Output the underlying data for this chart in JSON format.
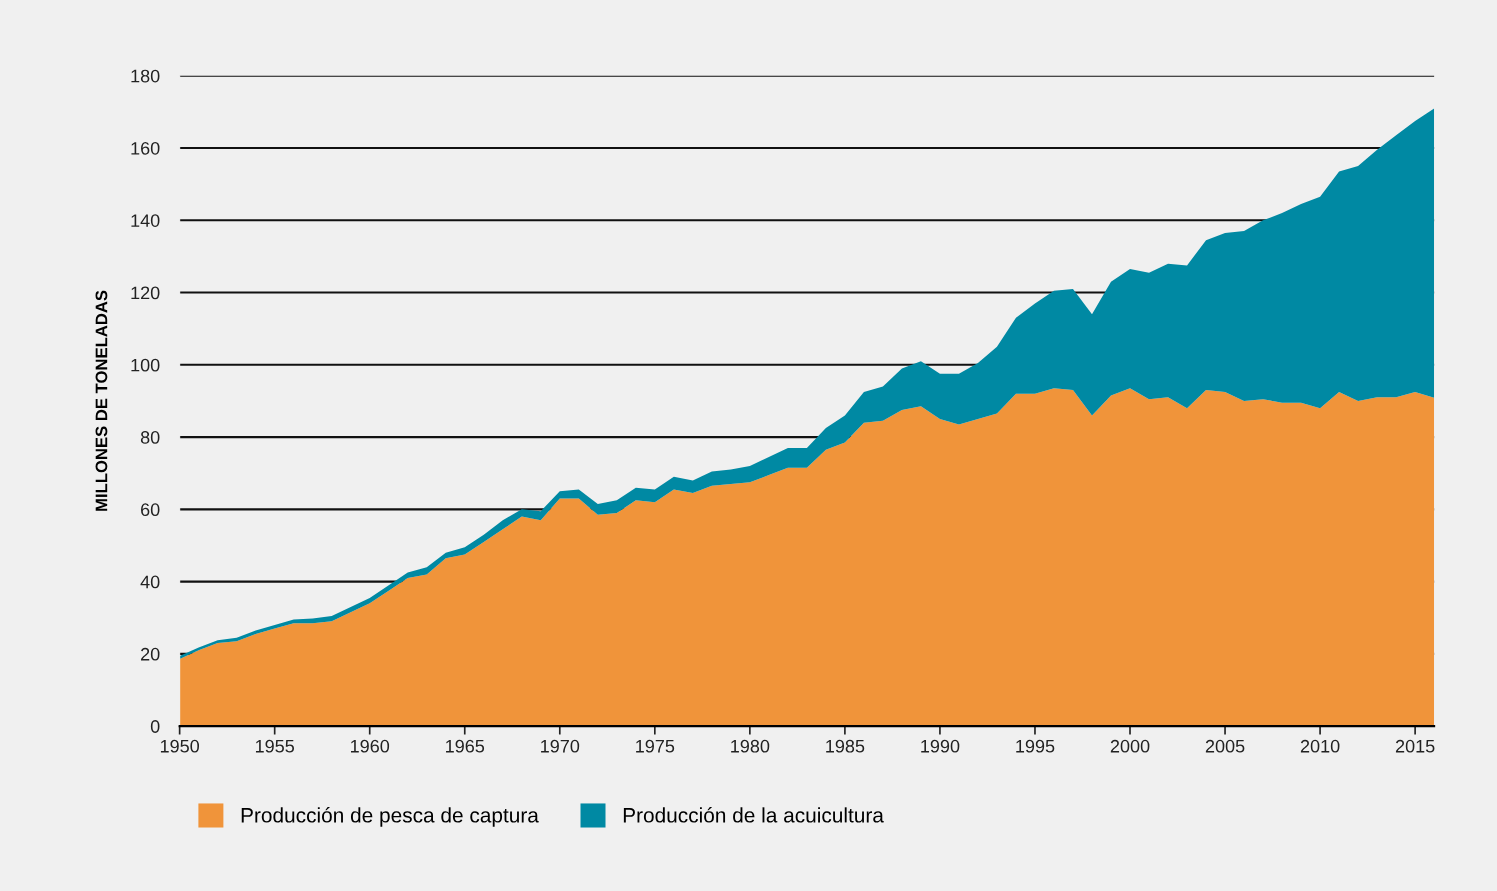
{
  "chart_data": {
    "type": "area",
    "stacked": true,
    "ylabel": "MILLONES DE TONELADAS",
    "x": [
      1950,
      1951,
      1952,
      1953,
      1954,
      1955,
      1956,
      1957,
      1958,
      1959,
      1960,
      1961,
      1962,
      1963,
      1964,
      1965,
      1966,
      1967,
      1968,
      1969,
      1970,
      1971,
      1972,
      1973,
      1974,
      1975,
      1976,
      1977,
      1978,
      1979,
      1980,
      1981,
      1982,
      1983,
      1984,
      1985,
      1986,
      1987,
      1988,
      1989,
      1990,
      1991,
      1992,
      1993,
      1994,
      1995,
      1996,
      1997,
      1998,
      1999,
      2000,
      2001,
      2002,
      2003,
      2004,
      2005,
      2006,
      2007,
      2008,
      2009,
      2010,
      2011,
      2012,
      2013,
      2014,
      2015,
      2016
    ],
    "series": [
      {
        "name": "Producción de pesca de captura",
        "color": "#f0943a",
        "values": [
          18.6,
          21.0,
          23.0,
          23.5,
          25.5,
          27.0,
          28.5,
          28.5,
          29.0,
          31.5,
          34.0,
          37.5,
          41.0,
          42.0,
          46.5,
          47.5,
          51.0,
          54.5,
          58.0,
          57.0,
          63.0,
          63.0,
          58.5,
          59.0,
          62.5,
          62.0,
          65.5,
          64.5,
          66.5,
          67.0,
          67.5,
          69.5,
          71.5,
          71.5,
          76.5,
          78.5,
          84.0,
          84.5,
          87.5,
          88.5,
          85.0,
          83.5,
          85.0,
          86.5,
          92.0,
          92.0,
          93.5,
          93.0,
          86.0,
          91.5,
          93.5,
          90.5,
          91.0,
          88.0,
          93.0,
          92.5,
          90.0,
          90.5,
          89.5,
          89.5,
          88.0,
          92.5,
          90.0,
          91.0,
          91.0,
          92.5,
          90.9
        ]
      },
      {
        "name": "Producción de la acuicultura",
        "color": "#0089a3",
        "values": [
          0.8,
          0.8,
          0.8,
          1.0,
          1.0,
          1.0,
          1.0,
          1.3,
          1.5,
          1.5,
          1.5,
          1.5,
          1.5,
          2.0,
          1.5,
          2.0,
          2.0,
          2.5,
          2.0,
          2.5,
          2.0,
          2.5,
          3.0,
          3.5,
          3.5,
          3.5,
          3.5,
          3.5,
          4.0,
          4.0,
          4.5,
          5.0,
          5.5,
          5.5,
          6.0,
          7.5,
          8.5,
          9.5,
          11.5,
          12.5,
          12.5,
          14.0,
          15.5,
          18.5,
          21.0,
          25.0,
          27.0,
          28.0,
          28.0,
          31.5,
          33.0,
          35.0,
          37.0,
          39.5,
          41.5,
          44.0,
          47.0,
          49.5,
          52.5,
          55.0,
          58.5,
          61.0,
          65.0,
          68.5,
          72.5,
          75.0,
          80.0
        ]
      }
    ],
    "xlim": [
      1950,
      2016
    ],
    "xticks": [
      1950,
      1955,
      1960,
      1965,
      1970,
      1975,
      1980,
      1985,
      1990,
      1995,
      2000,
      2005,
      2010,
      2015
    ],
    "ylim": [
      0,
      180
    ],
    "yticks": [
      0,
      20,
      40,
      60,
      80,
      100,
      120,
      140,
      160,
      180
    ],
    "grid": "y",
    "legend": "bottom left"
  }
}
